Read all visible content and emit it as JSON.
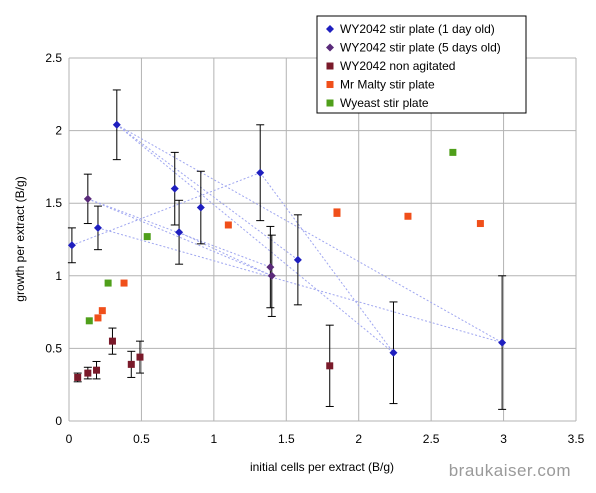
{
  "chart_data": {
    "type": "scatter",
    "title": "",
    "xlabel": "initial cells per extract (B/g)",
    "ylabel": "growth per extract (B/g)",
    "xlim": [
      0,
      3.5
    ],
    "ylim": [
      0,
      2.5
    ],
    "xticks": [
      "0",
      "0.5",
      "1",
      "1.5",
      "2",
      "2.5",
      "3",
      "3.5"
    ],
    "yticks": [
      "0",
      "0.5",
      "1",
      "1.5",
      "2",
      "2.5"
    ],
    "grid": true,
    "legend_position": "top-right",
    "series": [
      {
        "name": "WY2042 stir plate (1 day old)",
        "color": "#1f1fbf",
        "marker": "diamond",
        "points": [
          {
            "x": 0.02,
            "y": 1.21,
            "err": 0.12
          },
          {
            "x": 0.2,
            "y": 1.33,
            "err": 0.15
          },
          {
            "x": 0.33,
            "y": 2.04,
            "err": 0.24
          },
          {
            "x": 0.73,
            "y": 1.6,
            "err": 0.25
          },
          {
            "x": 0.76,
            "y": 1.3,
            "err": 0.22
          },
          {
            "x": 0.91,
            "y": 1.47,
            "err": 0.25
          },
          {
            "x": 1.32,
            "y": 1.71,
            "err": 0.33
          },
          {
            "x": 1.58,
            "y": 1.11,
            "err": 0.31
          },
          {
            "x": 2.24,
            "y": 0.47,
            "err": 0.35
          },
          {
            "x": 2.99,
            "y": 0.54,
            "err": 0.46
          }
        ]
      },
      {
        "name": "WY2042 stir plate (5 days old)",
        "color": "#5a2a7a",
        "marker": "diamond",
        "points": [
          {
            "x": 0.13,
            "y": 1.53,
            "err": 0.17
          },
          {
            "x": 1.39,
            "y": 1.06,
            "err": 0.28
          },
          {
            "x": 1.4,
            "y": 1.0,
            "err": 0.28
          }
        ]
      },
      {
        "name": "WY2042 non agitated",
        "color": "#7a1a2a",
        "marker": "square",
        "points": [
          {
            "x": 0.06,
            "y": 0.3,
            "err": 0.03
          },
          {
            "x": 0.13,
            "y": 0.33,
            "err": 0.04
          },
          {
            "x": 0.19,
            "y": 0.35,
            "err": 0.06
          },
          {
            "x": 0.3,
            "y": 0.55,
            "err": 0.09
          },
          {
            "x": 0.43,
            "y": 0.39,
            "err": 0.09
          },
          {
            "x": 0.49,
            "y": 0.44,
            "err": 0.11
          },
          {
            "x": 1.8,
            "y": 0.38,
            "err": 0.28
          }
        ]
      },
      {
        "name": "Mr Malty stir plate",
        "color": "#f04f1a",
        "marker": "square",
        "points": [
          {
            "x": 0.2,
            "y": 0.71
          },
          {
            "x": 0.23,
            "y": 0.76
          },
          {
            "x": 0.38,
            "y": 0.95
          },
          {
            "x": 1.1,
            "y": 1.35
          },
          {
            "x": 1.85,
            "y": 1.44
          },
          {
            "x": 1.85,
            "y": 1.43
          },
          {
            "x": 2.34,
            "y": 1.41
          },
          {
            "x": 2.84,
            "y": 1.36
          }
        ]
      },
      {
        "name": "Wyeast stir plate",
        "color": "#4f9f1a",
        "marker": "square",
        "points": [
          {
            "x": 0.14,
            "y": 0.69
          },
          {
            "x": 0.27,
            "y": 0.95
          },
          {
            "x": 0.54,
            "y": 1.27
          },
          {
            "x": 2.65,
            "y": 1.85
          }
        ]
      }
    ],
    "connector_lines": {
      "color": "#9fa6f0",
      "style": "dotted",
      "segments": [
        [
          [
            0.33,
            2.04
          ],
          [
            1.58,
            1.11
          ]
        ],
        [
          [
            0.33,
            2.04
          ],
          [
            2.24,
            0.47
          ]
        ],
        [
          [
            0.33,
            2.04
          ],
          [
            2.99,
            0.54
          ]
        ],
        [
          [
            0.13,
            1.53
          ],
          [
            1.39,
            1.06
          ]
        ],
        [
          [
            0.13,
            1.53
          ],
          [
            1.4,
            1.0
          ]
        ],
        [
          [
            0.2,
            1.33
          ],
          [
            2.99,
            0.54
          ]
        ],
        [
          [
            0.02,
            1.21
          ],
          [
            1.32,
            1.71
          ]
        ],
        [
          [
            1.32,
            1.71
          ],
          [
            2.24,
            0.47
          ]
        ],
        [
          [
            0.76,
            1.3
          ],
          [
            1.4,
            1.0
          ]
        ]
      ]
    },
    "watermark": "braukaiser.com"
  }
}
